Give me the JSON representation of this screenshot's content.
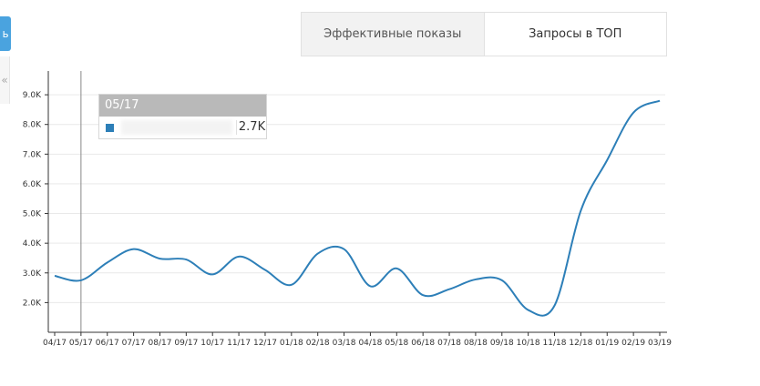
{
  "ui": {
    "left_button_icon": "arrow-icon",
    "left_button_glyph": "ь",
    "left_collapse_icon": "chevron-left-icon",
    "left_collapse_glyph": "«"
  },
  "tabs": [
    {
      "label": "Эффективные показы",
      "active": true
    },
    {
      "label": "Запросы в ТОП",
      "active": false
    }
  ],
  "tooltip": {
    "date": "05/17",
    "value": "2.7K",
    "swatch_color": "#2d7fb8"
  },
  "chart_data": {
    "type": "line",
    "categories": [
      "04/17",
      "05/17",
      "06/17",
      "07/17",
      "08/17",
      "09/17",
      "10/17",
      "11/17",
      "12/17",
      "01/18",
      "02/18",
      "03/18",
      "04/18",
      "05/18",
      "06/18",
      "07/18",
      "08/18",
      "09/18",
      "10/18",
      "11/18",
      "12/18",
      "01/19",
      "02/19",
      "03/19"
    ],
    "y_ticks": [
      "2.0K",
      "3.0K",
      "4.0K",
      "5.0K",
      "6.0K",
      "7.0K",
      "8.0K",
      "9.0K"
    ],
    "ylim": [
      1000,
      9800
    ],
    "series": [
      {
        "color": "#2d7fb8",
        "values": [
          2900,
          2750,
          3350,
          3800,
          3480,
          3450,
          2950,
          3550,
          3100,
          2600,
          3650,
          3800,
          2550,
          3150,
          2250,
          2450,
          2780,
          2750,
          1750,
          1900,
          5100,
          6800,
          8400,
          8800
        ]
      }
    ],
    "hover_category": "05/17",
    "grid": true
  }
}
